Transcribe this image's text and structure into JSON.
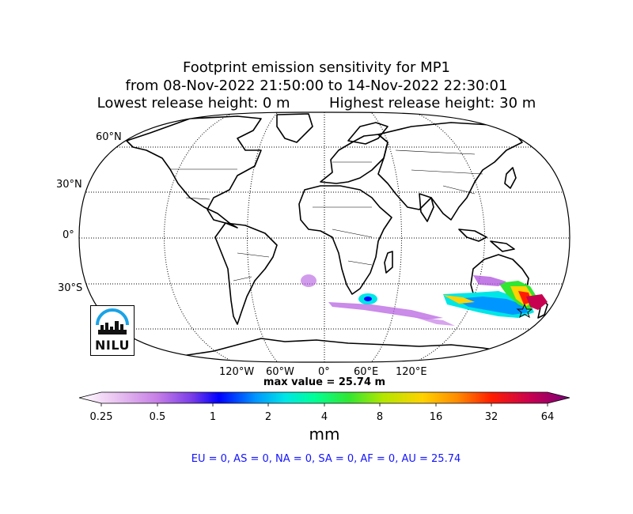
{
  "title": {
    "line1": "Footprint emission sensitivity for MP1",
    "line2": "from 08-Nov-2022 21:50:00 to 14-Nov-2022 22:30:01",
    "line3_left": "Lowest release height: 0 m",
    "line3_right": "Highest release height: 30 m"
  },
  "map": {
    "projection": "Robinson",
    "lat_labels": [
      "60°N",
      "30°N",
      "0°",
      "30°S"
    ],
    "lon_labels": [
      "120°W",
      "60°W",
      "0°",
      "60°E",
      "120°E"
    ],
    "gridlines": "dotted",
    "release_marker": "star",
    "plume_region": "southern ocean and south-east Australia"
  },
  "max_value_label": "max value = 25.74 m",
  "colorbar": {
    "ticks": [
      "0.25",
      "0.5",
      "1",
      "2",
      "4",
      "8",
      "16",
      "32",
      "64"
    ],
    "unit": "mm",
    "colors": [
      "#ffffff",
      "#e8b8f0",
      "#b45ae0",
      "#6432e6",
      "#0000ff",
      "#0096ff",
      "#00e6e6",
      "#00ff96",
      "#32e632",
      "#b4e600",
      "#ffd200",
      "#ff8c00",
      "#ff1e00",
      "#c80050",
      "#780078"
    ]
  },
  "regions_line": "EU = 0,  AS = 0,  NA = 0,  SA = 0,  AF = 0,  AU = 25.74",
  "logo": {
    "text": "NILU"
  }
}
